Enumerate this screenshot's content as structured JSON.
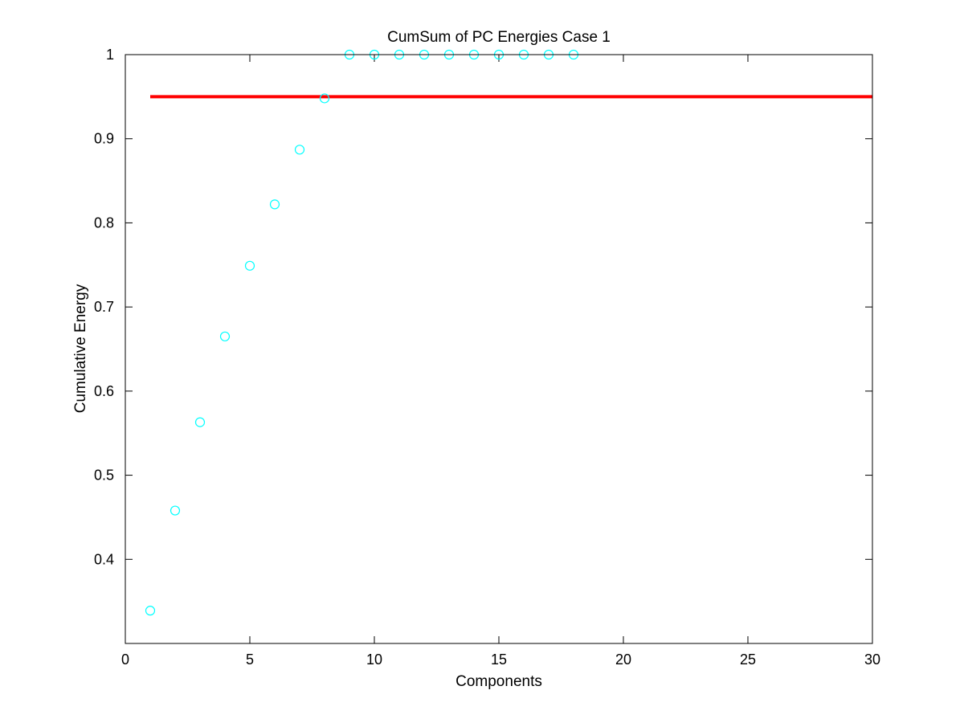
{
  "chart_data": {
    "type": "scatter",
    "title": "CumSum of PC Energies Case 1",
    "xlabel": "Components",
    "ylabel": "Cumulative Energy",
    "xlim": [
      0,
      30
    ],
    "ylim": [
      0.3,
      1.0
    ],
    "xticks": [
      0,
      5,
      10,
      15,
      20,
      25,
      30
    ],
    "yticks": [
      0.4,
      0.5,
      0.6,
      0.7,
      0.8,
      0.9,
      1
    ],
    "xtick_labels": [
      "0",
      "5",
      "10",
      "15",
      "20",
      "25",
      "30"
    ],
    "ytick_labels": [
      "0.4",
      "0.5",
      "0.6",
      "0.7",
      "0.8",
      "0.9",
      "1"
    ],
    "grid": false,
    "series": [
      {
        "type": "scatter",
        "marker": "circle",
        "color": "#00ffff",
        "x": [
          1,
          2,
          3,
          4,
          5,
          6,
          7,
          8,
          9,
          10,
          11,
          12,
          13,
          14,
          15,
          16,
          17,
          18
        ],
        "y": [
          0.339,
          0.458,
          0.563,
          0.665,
          0.749,
          0.822,
          0.887,
          0.948,
          1.0,
          1.0,
          1.0,
          1.0,
          1.0,
          1.0,
          1.0,
          1.0,
          1.0,
          1.0
        ]
      },
      {
        "type": "line",
        "color": "#ff0000",
        "x": [
          1,
          30
        ],
        "y": [
          0.95,
          0.95
        ]
      }
    ]
  }
}
